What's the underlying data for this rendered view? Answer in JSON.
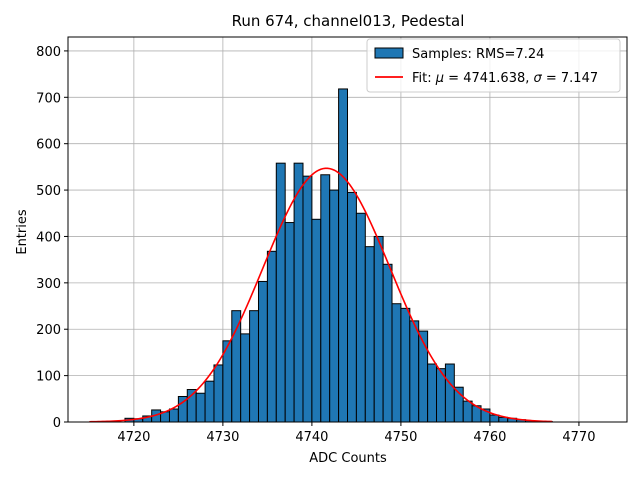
{
  "chart_data": {
    "type": "bar",
    "title": "Run 674, channel013, Pedestal",
    "xlabel": "ADC Counts",
    "ylabel": "Entries",
    "xlim": [
      4712.6,
      4775.4
    ],
    "ylim": [
      0,
      830
    ],
    "xticks": [
      4720,
      4730,
      4740,
      4750,
      4760,
      4770
    ],
    "yticks": [
      0,
      100,
      200,
      300,
      400,
      500,
      600,
      700,
      800
    ],
    "grid": true,
    "legend_position": "top-right",
    "bin_width": 1,
    "histogram": {
      "name": "Samples: RMS=7.24",
      "color": "#1f77b4",
      "edge_color": "#000000",
      "bin_start": [
        4719,
        4720,
        4721,
        4722,
        4723,
        4724,
        4725,
        4726,
        4727,
        4728,
        4729,
        4730,
        4731,
        4732,
        4733,
        4734,
        4735,
        4736,
        4737,
        4738,
        4739,
        4740,
        4741,
        4742,
        4743,
        4744,
        4745,
        4746,
        4747,
        4748,
        4749,
        4750,
        4751,
        4752,
        4753,
        4754,
        4755,
        4756,
        4757,
        4758,
        4759,
        4760,
        4761,
        4762,
        4763,
        4764,
        4765,
        4766
      ],
      "counts": [
        8,
        7,
        13,
        26,
        22,
        28,
        55,
        70,
        62,
        88,
        123,
        175,
        240,
        190,
        240,
        303,
        368,
        558,
        430,
        558,
        530,
        437,
        533,
        500,
        718,
        495,
        450,
        378,
        400,
        340,
        255,
        245,
        218,
        196,
        125,
        115,
        125,
        75,
        45,
        35,
        28,
        15,
        10,
        8,
        5,
        3,
        2,
        1
      ]
    },
    "fit": {
      "name": "Fit: μ = 4741.638, σ = 7.147",
      "label_prefix": "Fit: ",
      "mu_symbol": "μ",
      "mu_text": " = 4741.638, ",
      "sigma_symbol": "σ",
      "sigma_text": " = 7.147",
      "color": "#ff0000",
      "mu": 4741.638,
      "sigma": 7.147,
      "amplitude": 547,
      "x_range": [
        4715,
        4767
      ]
    }
  }
}
